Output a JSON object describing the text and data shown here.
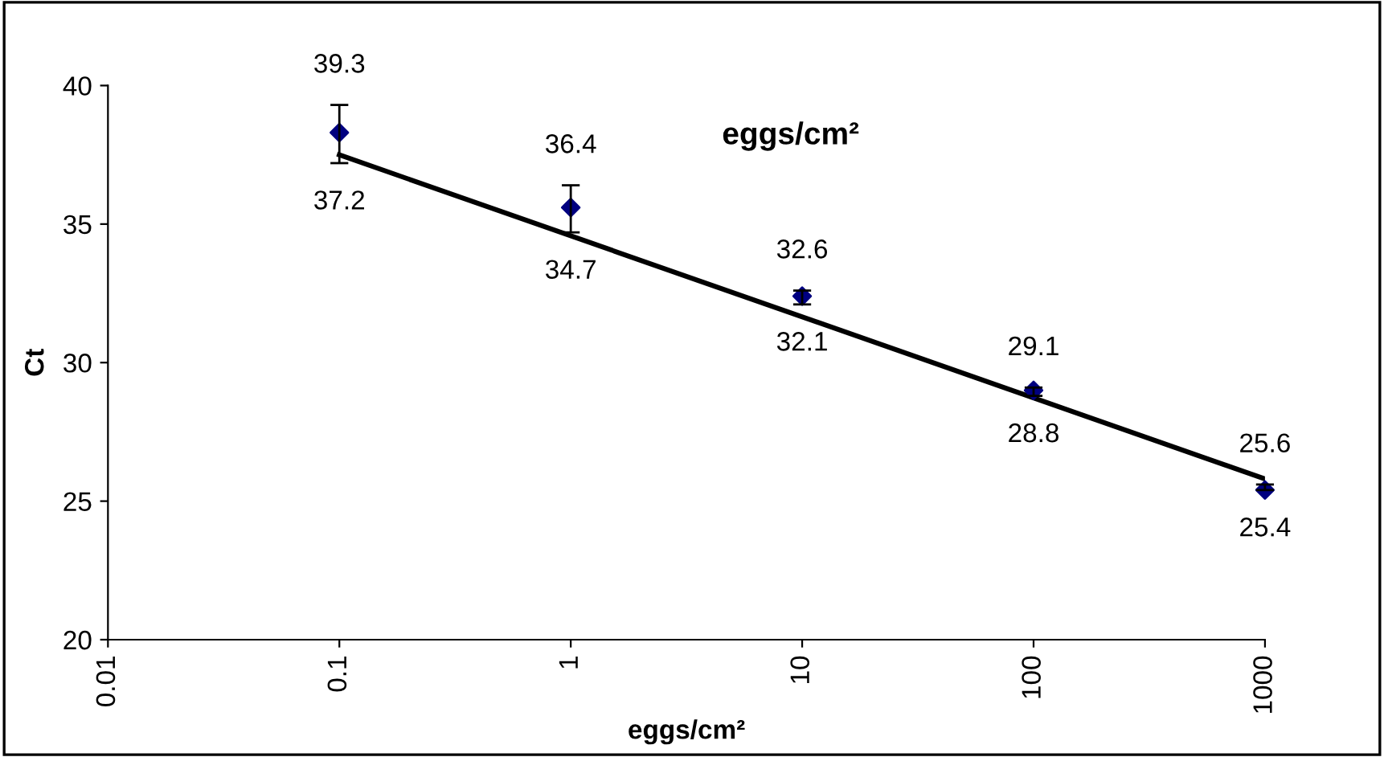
{
  "chart_data": {
    "type": "scatter",
    "title": "eggs/cm²",
    "xlabel": "eggs/cm²",
    "ylabel": "Ct",
    "log": "x",
    "xlim": [
      0.01,
      1000
    ],
    "xticks": [
      {
        "value": 0.01,
        "label": "0.01"
      },
      {
        "value": 0.1,
        "label": "0.1"
      },
      {
        "value": 1,
        "label": "1"
      },
      {
        "value": 10,
        "label": "10"
      },
      {
        "value": 100,
        "label": "100"
      },
      {
        "value": 1000,
        "label": "1000"
      }
    ],
    "ylim": [
      20,
      40
    ],
    "yticks": [
      20,
      25,
      30,
      35,
      40
    ],
    "grid": false,
    "marker": "diamond",
    "series": [
      {
        "color": "#000080",
        "x": [
          0.1,
          1,
          10,
          100,
          1000
        ],
        "values": [
          38.3,
          35.6,
          32.4,
          29.0,
          25.4
        ],
        "errors": [
          [
            37.2,
            39.3
          ],
          [
            34.7,
            36.4
          ],
          [
            32.1,
            32.6
          ],
          [
            28.8,
            29.1
          ],
          [
            25.4,
            25.6
          ]
        ]
      },
      {
        "type": "line",
        "color": "#000000",
        "marker": "none",
        "line_style": "solid",
        "x": [
          0.1,
          1000
        ],
        "values": [
          37.5,
          25.8
        ]
      }
    ],
    "annotations": [
      {
        "text": "39.3",
        "x": 0.1,
        "y": 39.3
      },
      {
        "text": "37.2",
        "x": 0.1,
        "y": 37.2
      },
      {
        "text": "36.4",
        "x": 1,
        "y": 36.4
      },
      {
        "text": "34.7",
        "x": 1,
        "y": 34.7
      },
      {
        "text": "32.6",
        "x": 10,
        "y": 32.6
      },
      {
        "text": "32.1",
        "x": 10,
        "y": 32.1
      },
      {
        "text": "29.1",
        "x": 100,
        "y": 29.1
      },
      {
        "text": "28.8",
        "x": 100,
        "y": 28.8
      },
      {
        "text": "25.6",
        "x": 1000,
        "y": 25.6
      },
      {
        "text": "25.4",
        "x": 1000,
        "y": 25.4
      }
    ]
  }
}
